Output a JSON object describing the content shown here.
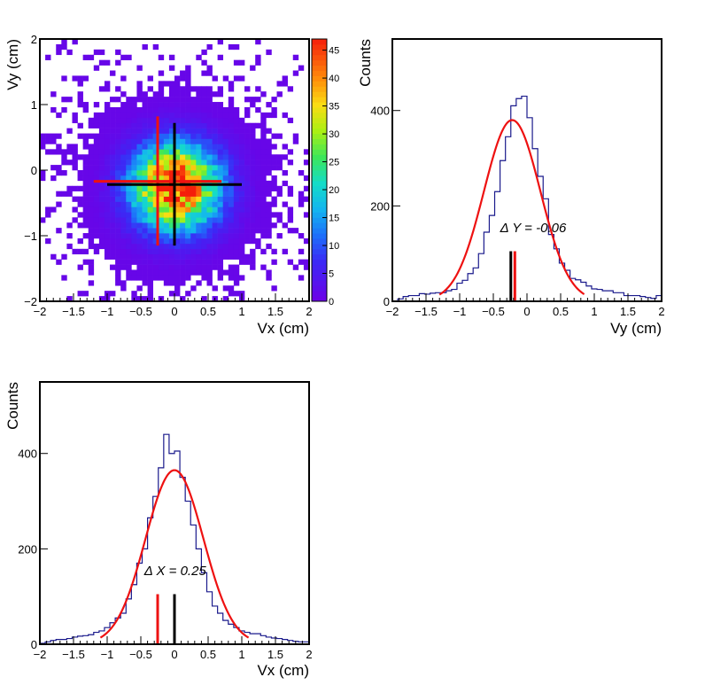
{
  "chart_data": [
    {
      "id": "vy_vs_vx",
      "type": "heatmap",
      "xlabel": "Vx (cm)",
      "ylabel": "Vy (cm)",
      "xlim": [
        -2,
        2
      ],
      "ylim": [
        -2,
        2
      ],
      "xticks": [
        -2,
        -1.5,
        -1,
        -0.5,
        0,
        0.5,
        1,
        1.5,
        2
      ],
      "xtick_labels": [
        "−2",
        "−1.5",
        "−1",
        "−0.5",
        "0",
        "0.5",
        "1",
        "1.5",
        "2"
      ],
      "yticks": [
        -2,
        -1,
        0,
        1,
        2
      ],
      "ytick_labels": [
        "−2",
        "−1",
        "0",
        "1",
        "2"
      ],
      "zlim": [
        0,
        47
      ],
      "zticks": [
        0,
        5,
        10,
        15,
        20,
        25,
        30,
        35,
        40,
        45
      ],
      "ztick_labels": [
        "0",
        "5",
        "10",
        "15",
        "20",
        "25",
        "30",
        "35",
        "40",
        "45"
      ],
      "bins": 50,
      "center": {
        "x": 0.02,
        "y": -0.25
      },
      "spread": {
        "x": 0.45,
        "y": 0.45
      },
      "peak": 47,
      "crosshairs": [
        {
          "color": "#ee1111",
          "x_range": [
            -1.2,
            0.7
          ],
          "y_at": -0.17,
          "x_at": -0.25,
          "y_range": [
            -1.15,
            0.82
          ]
        },
        {
          "color": "#000000",
          "x_range": [
            -1.0,
            1.0
          ],
          "y_at": -0.22,
          "x_at": 0.0,
          "y_range": [
            -1.15,
            0.72
          ]
        }
      ]
    },
    {
      "id": "vy_projection",
      "type": "line",
      "xlabel": "Vy (cm)",
      "ylabel": "Counts",
      "xlim": [
        -2,
        2
      ],
      "ylim": [
        0,
        550
      ],
      "xticks": [
        -2,
        -1.5,
        -1,
        -0.5,
        0,
        0.5,
        1,
        1.5,
        2
      ],
      "xtick_labels": [
        "−2",
        "−1.5",
        "−1",
        "−0.5",
        "0",
        "0.5",
        "1",
        "1.5",
        "2"
      ],
      "yticks": [
        0,
        200,
        400
      ],
      "ytick_labels": [
        "0",
        "200",
        "400"
      ],
      "series": [
        {
          "kind": "histogram",
          "color": "#1a1a8c",
          "bin_start": -2,
          "bin_width": 0.08,
          "values": [
            0,
            5,
            10,
            12,
            12,
            16,
            15,
            17,
            18,
            18,
            22,
            25,
            38,
            44,
            58,
            70,
            100,
            145,
            180,
            230,
            295,
            345,
            410,
            425,
            430,
            385,
            320,
            262,
            215,
            140,
            110,
            80,
            65,
            48,
            45,
            40,
            32,
            26,
            25,
            22,
            22,
            18,
            18,
            12,
            12,
            12,
            10,
            8,
            6,
            12
          ]
        },
        {
          "kind": "gaussian",
          "color": "#ee1111",
          "amplitude": 380,
          "mean": -0.22,
          "sigma": 0.42,
          "x_range": [
            -1.3,
            0.85
          ]
        }
      ],
      "markers": [
        {
          "color": "#000000",
          "x": -0.24,
          "height": 105
        },
        {
          "color": "#ee1111",
          "x": -0.18,
          "height": 105
        }
      ],
      "annotation": {
        "text": "Δ Y = -0.06",
        "x": -0.4,
        "y": 145
      }
    },
    {
      "id": "vx_projection",
      "type": "line",
      "xlabel": "Vx (cm)",
      "ylabel": "Counts",
      "xlim": [
        -2,
        2
      ],
      "ylim": [
        0,
        550
      ],
      "xticks": [
        -2,
        -1.5,
        -1,
        -0.5,
        0,
        0.5,
        1,
        1.5,
        2
      ],
      "xtick_labels": [
        "−2",
        "−1.5",
        "−1",
        "−0.5",
        "0",
        "0.5",
        "1",
        "1.5",
        "2"
      ],
      "yticks": [
        0,
        200,
        400
      ],
      "ytick_labels": [
        "0",
        "200",
        "400"
      ],
      "series": [
        {
          "kind": "histogram",
          "color": "#1a1a8c",
          "bin_start": -2,
          "bin_width": 0.08,
          "values": [
            2,
            5,
            8,
            10,
            10,
            12,
            15,
            17,
            18,
            20,
            25,
            28,
            35,
            45,
            55,
            65,
            95,
            125,
            170,
            200,
            265,
            310,
            370,
            440,
            400,
            405,
            350,
            300,
            250,
            200,
            150,
            110,
            80,
            65,
            50,
            42,
            35,
            28,
            25,
            22,
            22,
            18,
            15,
            13,
            12,
            10,
            8,
            6,
            5,
            5
          ]
        },
        {
          "kind": "gaussian",
          "color": "#ee1111",
          "amplitude": 365,
          "mean": 0.0,
          "sigma": 0.43,
          "x_range": [
            -1.1,
            1.1
          ]
        }
      ],
      "markers": [
        {
          "color": "#ee1111",
          "x": -0.25,
          "height": 105
        },
        {
          "color": "#000000",
          "x": 0.0,
          "height": 105
        }
      ],
      "annotation": {
        "text": "Δ X = 0.25",
        "x": -0.45,
        "y": 145
      }
    }
  ]
}
